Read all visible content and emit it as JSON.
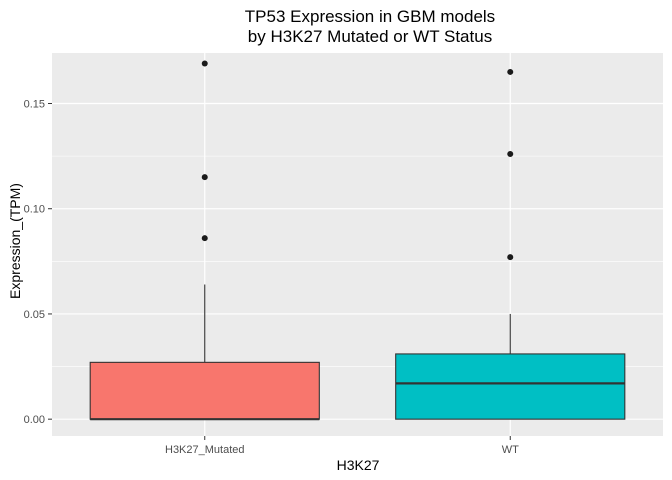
{
  "chart_data": {
    "type": "boxplot",
    "title": "TP53 Expression in GBM models\nby H3K27 Mutated or WT Status",
    "xlabel": "H3K27",
    "ylabel": "Expression_(TPM)",
    "categories": [
      "H3K27_Mutated",
      "WT"
    ],
    "ylim": [
      -0.008,
      0.174
    ],
    "yticks": [
      0.0,
      0.05,
      0.1,
      0.15
    ],
    "ytick_labels": [
      "0.00",
      "0.05",
      "0.10",
      "0.15"
    ],
    "grid": true,
    "legend": "none",
    "boxes": [
      {
        "category": "H3K27_Mutated",
        "color": "#F8766D",
        "min": 0.0,
        "q1": 0.0,
        "median": 0.0,
        "q3": 0.027,
        "max": 0.064,
        "outliers": [
          0.086,
          0.115,
          0.169
        ]
      },
      {
        "category": "WT",
        "color": "#00BFC4",
        "min": 0.0,
        "q1": 0.0,
        "median": 0.017,
        "q3": 0.031,
        "max": 0.05,
        "outliers": [
          0.077,
          0.126,
          0.165
        ]
      }
    ]
  },
  "colors": {
    "panel_background": "#EBEBEB",
    "grid_major": "#FFFFFF",
    "outline": "#333333",
    "outlier": "#1A1A1A"
  }
}
